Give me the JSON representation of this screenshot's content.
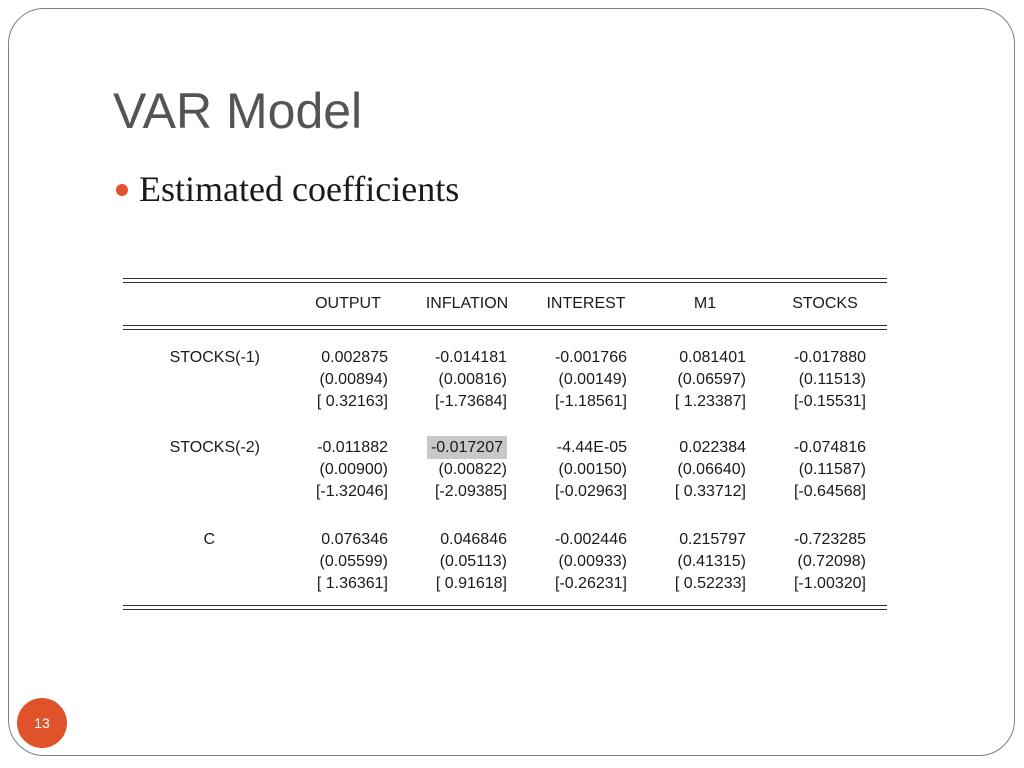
{
  "slide": {
    "title": "VAR Model",
    "bullet": "Estimated coefficients",
    "page_number": "13",
    "accent_color": "#e0522a",
    "highlight_color": "#c8c8c8"
  },
  "table": {
    "columns": [
      "OUTPUT",
      "INFLATION",
      "INTEREST",
      "M1",
      "STOCKS"
    ],
    "rows": [
      {
        "label": "STOCKS(-1)",
        "coef": [
          "0.002875",
          "-0.014181",
          "-0.001766",
          "0.081401",
          "-0.017880"
        ],
        "se": [
          "(0.00894)",
          "(0.00816)",
          "(0.00149)",
          "(0.06597)",
          "(0.11513)"
        ],
        "t": [
          "[ 0.32163]",
          "[-1.73684]",
          "[-1.18561]",
          "[ 1.23387]",
          "[-0.15531]"
        ]
      },
      {
        "label": "STOCKS(-2)",
        "coef": [
          "-0.011882",
          "-0.017207",
          "-4.44E-05",
          "0.022384",
          "-0.074816"
        ],
        "se": [
          "(0.00900)",
          "(0.00822)",
          "(0.00150)",
          "(0.06640)",
          "(0.11587)"
        ],
        "t": [
          "[-1.32046]",
          "[-2.09385]",
          "[-0.02963]",
          "[ 0.33712]",
          "[-0.64568]"
        ]
      },
      {
        "label": "C",
        "coef": [
          "0.076346",
          "0.046846",
          "-0.002446",
          "0.215797",
          "-0.723285"
        ],
        "se": [
          "(0.05599)",
          "(0.05113)",
          "(0.00933)",
          "(0.41315)",
          "(0.72098)"
        ],
        "t": [
          "[ 1.36361]",
          "[ 0.91618]",
          "[-0.26231]",
          "[ 0.52233]",
          "[-1.00320]"
        ]
      }
    ],
    "highlighted_cell": "-0.017207"
  }
}
